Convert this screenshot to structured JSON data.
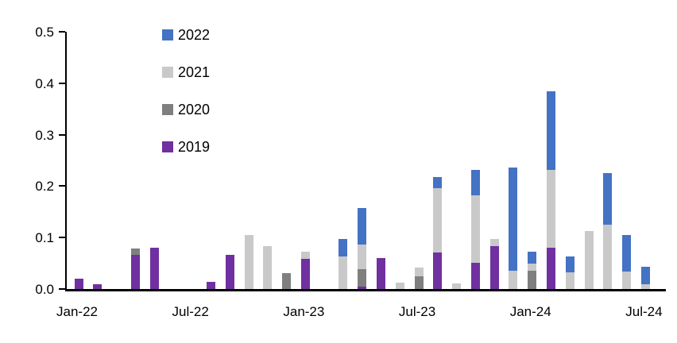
{
  "chart_data": {
    "type": "bar",
    "stacked": true,
    "title": "",
    "xlabel": "",
    "ylabel": "",
    "ylim": [
      0,
      0.5
    ],
    "grid": false,
    "legend_position": "inside-top-left",
    "categories": [
      "Jan-22",
      "Feb-22",
      "Mar-22",
      "Apr-22",
      "May-22",
      "Jun-22",
      "Jul-22",
      "Aug-22",
      "Sep-22",
      "Oct-22",
      "Nov-22",
      "Dec-22",
      "Jan-23",
      "Feb-23",
      "Mar-23",
      "Apr-23",
      "May-23",
      "Jun-23",
      "Jul-23",
      "Aug-23",
      "Sep-23",
      "Oct-23",
      "Nov-23",
      "Dec-23",
      "Jan-24",
      "Feb-24",
      "Mar-24",
      "Apr-24",
      "May-24",
      "Jun-24",
      "Jul-24"
    ],
    "y_tick_labels": [
      "0.0",
      "0.1",
      "0.2",
      "0.3",
      "0.4",
      "0.5"
    ],
    "x_tick_labels": [
      "Jan-22",
      "Jul-22",
      "Jan-23",
      "Jul-23",
      "Jan-24",
      "Jul-24"
    ],
    "series": [
      {
        "name": "2022",
        "color": "#4472C4",
        "values": [
          0,
          0,
          0,
          0,
          0,
          0,
          0,
          0,
          0,
          0,
          0,
          0,
          0,
          0,
          0.034,
          0.071,
          0,
          0,
          0,
          0.021,
          0,
          0.05,
          0,
          0.201,
          0.024,
          0.154,
          0.032,
          0,
          0.101,
          0.071,
          0.035
        ]
      },
      {
        "name": "2021",
        "color": "#C9C9C9",
        "values": [
          0,
          0,
          0,
          0,
          0,
          0,
          0,
          0,
          0,
          0.105,
          0.084,
          0,
          0.013,
          0,
          0.064,
          0.048,
          0,
          0.012,
          0.016,
          0.125,
          0.011,
          0.131,
          0.015,
          0.035,
          0.014,
          0.151,
          0.032,
          0.112,
          0.125,
          0.034,
          0.009
        ]
      },
      {
        "name": "2020",
        "color": "#7F7F7F",
        "values": [
          0,
          0,
          0,
          0.013,
          0,
          0,
          0,
          0,
          0,
          0,
          0,
          0.031,
          0,
          0,
          0,
          0.034,
          0,
          0,
          0.025,
          0,
          0,
          0,
          0,
          0,
          0.035,
          0,
          0,
          0,
          0,
          0,
          0
        ]
      },
      {
        "name": "2019",
        "color": "#7030A0",
        "values": [
          0.02,
          0.01,
          0,
          0.066,
          0.08,
          0,
          0,
          0.014,
          0.066,
          0,
          0,
          0,
          0.059,
          0,
          0,
          0.005,
          0.06,
          0,
          0,
          0.071,
          0,
          0.051,
          0.083,
          0,
          0,
          0.08,
          0,
          0,
          0,
          0,
          0
        ]
      }
    ],
    "stack_order_bottom_to_top": [
      "2019",
      "2020",
      "2021",
      "2022"
    ]
  }
}
